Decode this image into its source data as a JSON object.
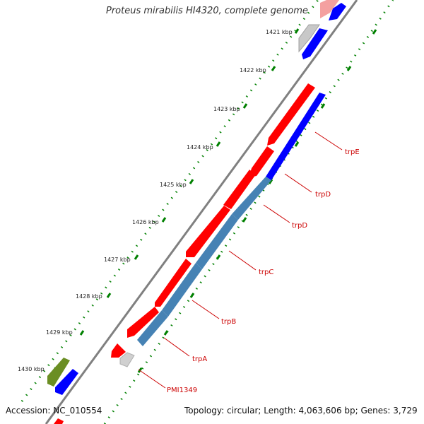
{
  "title": "Proteus mirabilis HI4320, complete genome",
  "footer": {
    "accession": "Accession: NC_010554",
    "summary": "Topology: circular; Length: 4,063,606 bp; Genes: 3,729"
  },
  "colors": {
    "forward_gene": "#ff0000",
    "reverse_gene": "#0000ff",
    "reverse_gene_highlight": "#4682b4",
    "misc_feature": "#c8c8c8",
    "rna_feature": "#6b8e23",
    "backbone": "#808080",
    "tick": "#008000",
    "label": "#cc0000"
  },
  "scale_labels": [
    "1421 kbp",
    "1422 kbp",
    "1423 kbp",
    "1424 kbp",
    "1425 kbp",
    "1426 kbp",
    "1427 kbp",
    "1428 kbp",
    "1429 kbp",
    "1430 kbp"
  ],
  "gene_labels": [
    "trpE",
    "trpD",
    "trpD",
    "trpC",
    "trpB",
    "trpA",
    "PMI1349"
  ]
}
